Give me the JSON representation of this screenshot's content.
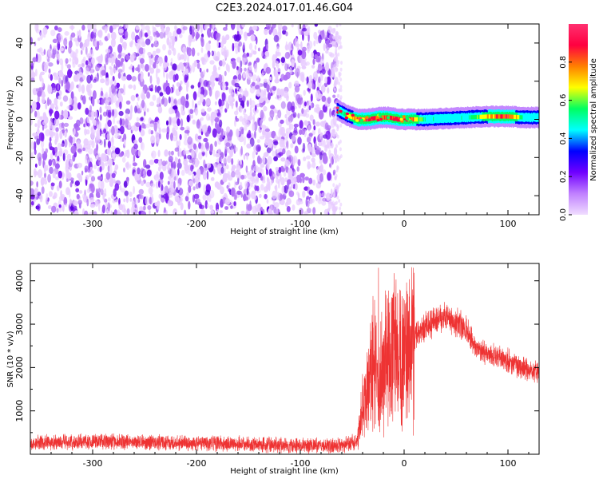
{
  "figure_title": "C2E3.2024.017.01.46.G04",
  "chart_data": [
    {
      "type": "heatmap",
      "xlabel": "Height of straight line (km)",
      "ylabel": "Frequency (Hz)",
      "xlim": [
        -360,
        130
      ],
      "ylim": [
        -50,
        50
      ],
      "x_ticks": [
        -300,
        -200,
        -100,
        0,
        100
      ],
      "y_ticks": [
        -40,
        -20,
        0,
        20,
        40
      ],
      "colorbar": {
        "label": "Normalized spectral amplitude",
        "range": [
          0,
          1
        ],
        "ticks": [
          0.0,
          0.2,
          0.4,
          0.6,
          0.8
        ],
        "colormap": [
          "#f0ddff",
          "#c080ff",
          "#7000ff",
          "#0000ff",
          "#00ffff",
          "#00ff60",
          "#ffff00",
          "#ff8000",
          "#ff0040",
          "#ff3070"
        ]
      },
      "noise_region": {
        "x_range": [
          -360,
          -65
        ],
        "level": 0.15
      },
      "signal_track": {
        "x": [
          -65,
          -55,
          -45,
          -35,
          -25,
          -15,
          -5,
          5,
          20,
          40,
          60,
          80,
          100,
          115,
          130
        ],
        "freq": [
          5,
          2,
          0,
          0,
          1,
          1,
          0,
          0,
          0,
          0.5,
          1,
          1.5,
          1.5,
          1,
          1
        ],
        "amplitude": [
          0.4,
          0.65,
          0.85,
          0.95,
          0.9,
          0.85,
          0.9,
          0.95,
          0.5,
          0.45,
          0.5,
          0.75,
          0.95,
          0.5,
          0.45
        ]
      }
    },
    {
      "type": "line",
      "xlabel": "Height of straight line (km)",
      "ylabel": "SNR (10 * v/v)",
      "xlim": [
        -360,
        130
      ],
      "ylim": [
        0,
        4400
      ],
      "x_ticks": [
        -300,
        -200,
        -100,
        0,
        100
      ],
      "y_ticks": [
        1000,
        2000,
        3000,
        4000
      ],
      "color": "#ee3333",
      "x": [
        -360,
        -300,
        -200,
        -100,
        -60,
        -45,
        -40,
        -35,
        -30,
        -25,
        -20,
        -15,
        -10,
        -5,
        0,
        5,
        10,
        15,
        20,
        30,
        40,
        50,
        60,
        65,
        70,
        80,
        90,
        100,
        110,
        120,
        130
      ],
      "y": [
        250,
        300,
        250,
        200,
        200,
        300,
        1000,
        1500,
        2200,
        1500,
        2000,
        2300,
        2300,
        2300,
        2300,
        2500,
        2700,
        2800,
        2900,
        3100,
        3200,
        3000,
        2900,
        2650,
        2400,
        2300,
        2250,
        2150,
        2050,
        1950,
        1900
      ]
    }
  ]
}
